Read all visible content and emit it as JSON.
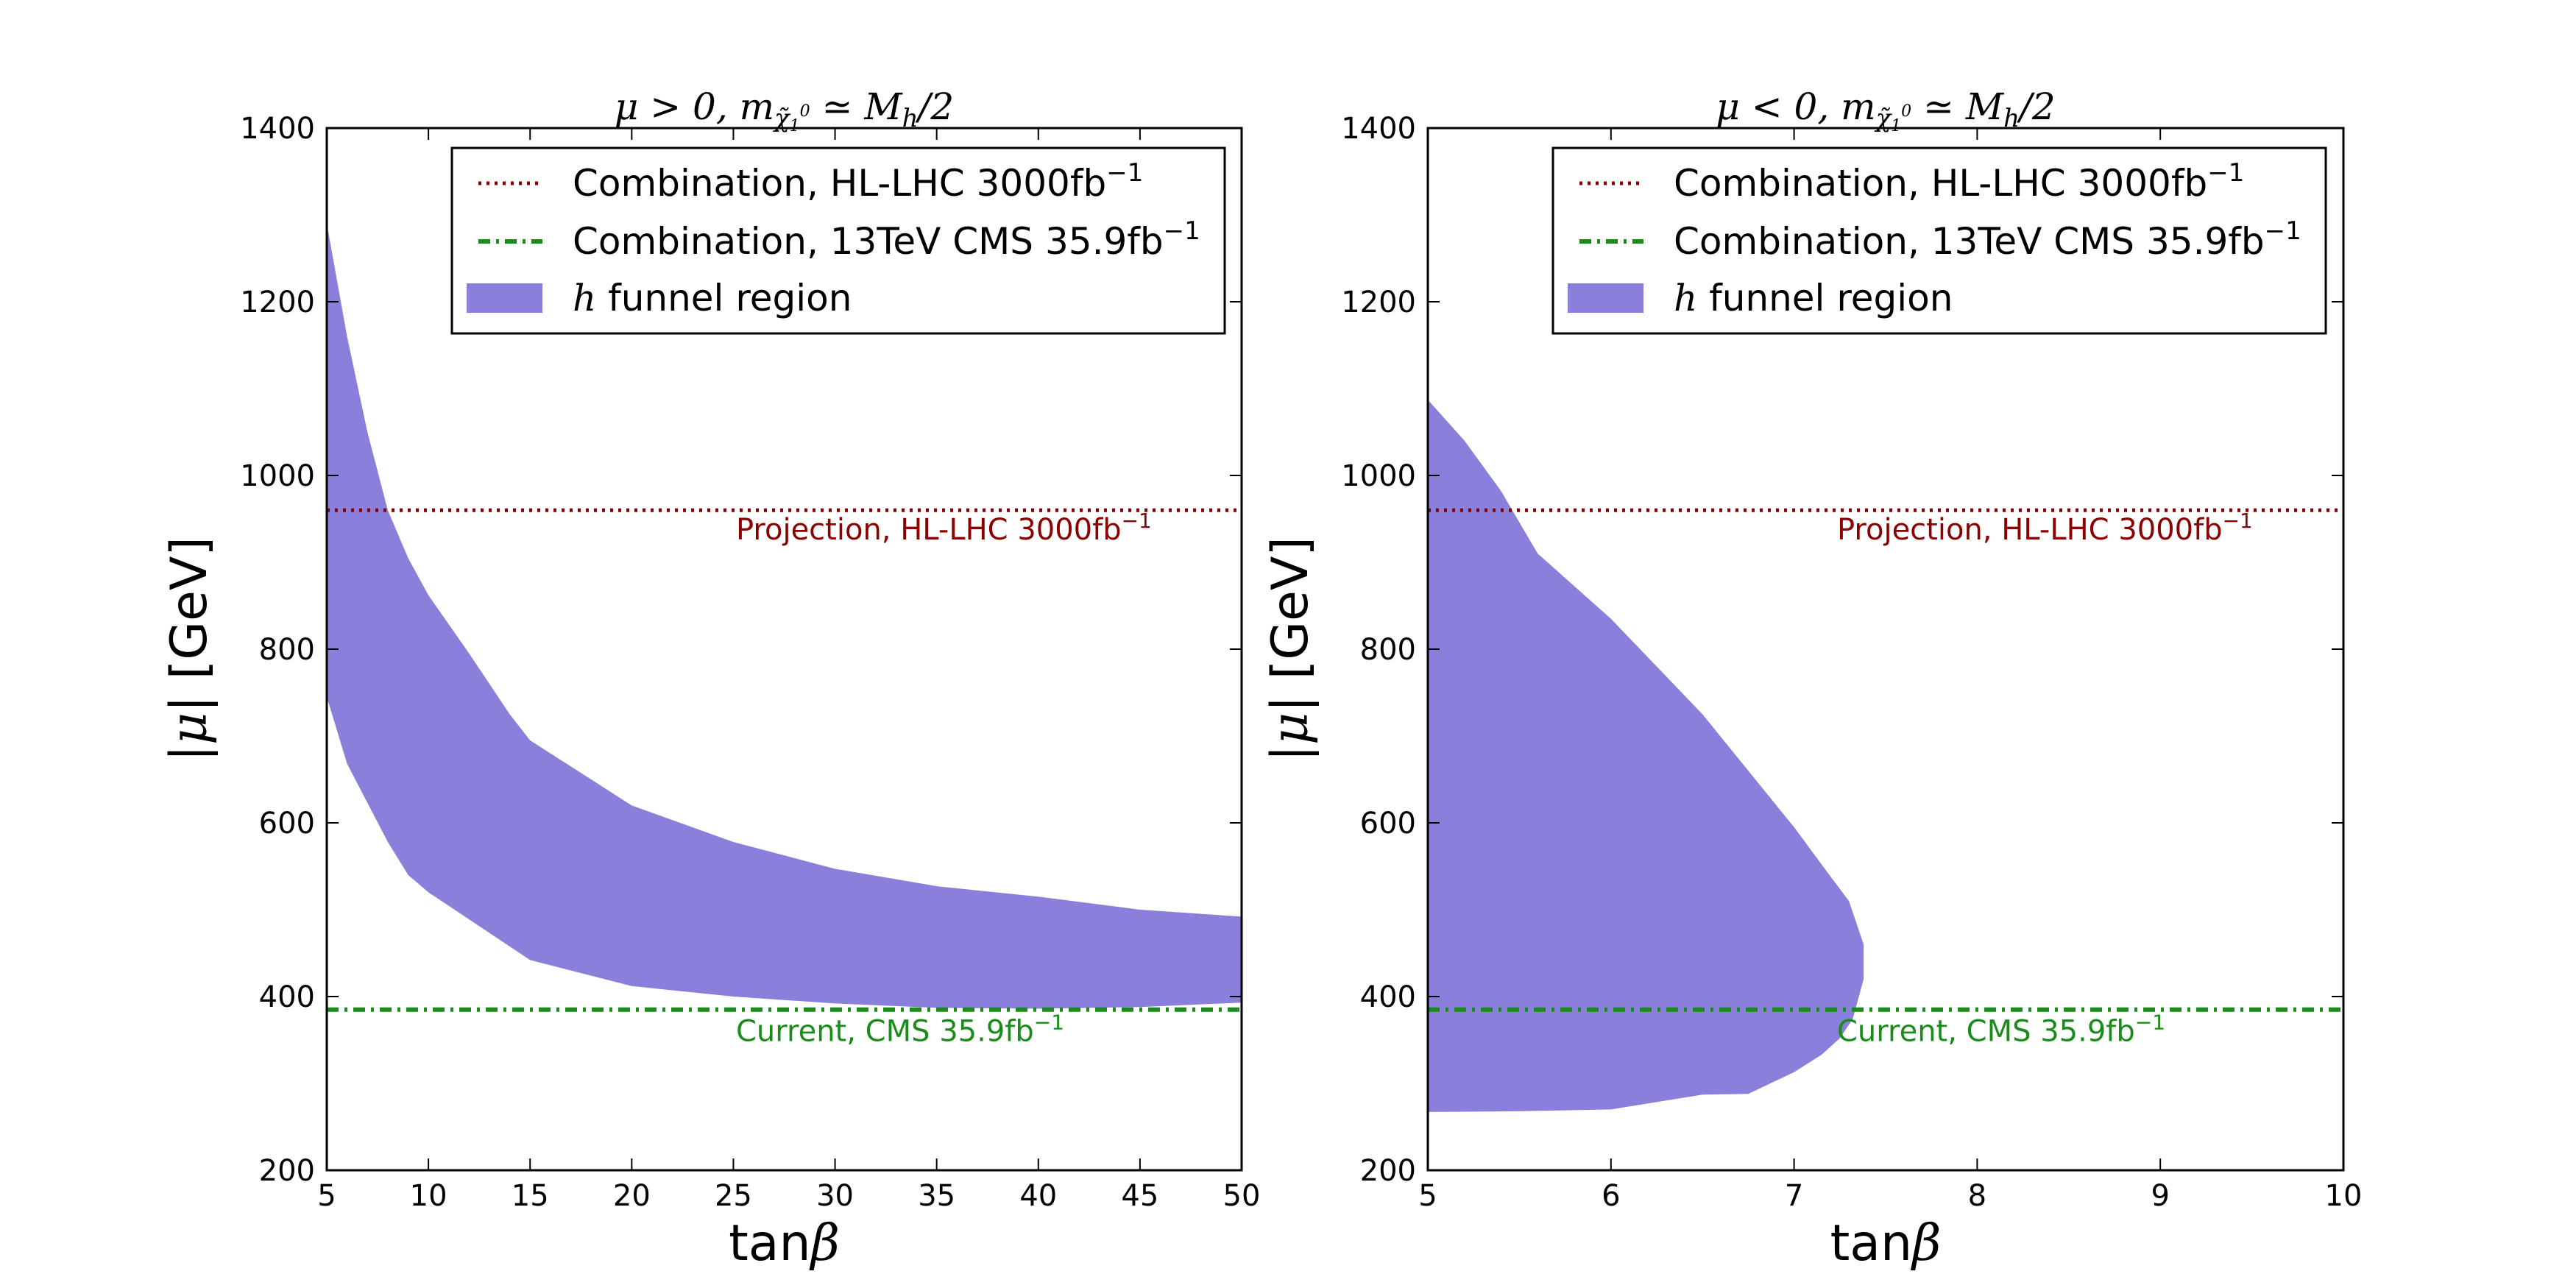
{
  "colors": {
    "funnel": "#8a7fda",
    "projection": "#8b0000",
    "current": "#1a8c1a",
    "axis": "#000000"
  },
  "legend": {
    "entries": [
      {
        "prefix": "Combination, HL-LHC 3000fb",
        "sup": "−1",
        "style": "dotted-red"
      },
      {
        "prefix": "Combination, 13TeV CMS 35.9fb",
        "sup": "−1",
        "style": "dashdot-green"
      },
      {
        "italic": "h",
        "suffix": " funnel region",
        "style": "fill"
      }
    ]
  },
  "chart_data": [
    {
      "type": "area",
      "title": "μ > 0, m_χ̃1⁰ ≃ M_h/2",
      "title_parts": {
        "sign": "μ > 0, ",
        "mass": "m",
        "chi": "χ̃",
        "chi_sub": "1",
        "chi_sup": "0",
        "approx": " ≃ ",
        "mh": "M",
        "mh_sub": "h",
        "tail": "/2"
      },
      "xlabel": "tanβ",
      "xlabel_parts": {
        "main": "tan",
        "greek": "β"
      },
      "ylabel": "|μ| [GeV]",
      "ylabel_parts": {
        "greek": "|μ|",
        "main": " [GeV]"
      },
      "xlim": [
        5,
        50
      ],
      "ylim": [
        200,
        1400
      ],
      "xticks": [
        5,
        10,
        15,
        20,
        25,
        30,
        35,
        40,
        45,
        50
      ],
      "yticks": [
        200,
        400,
        600,
        800,
        1000,
        1200,
        1400
      ],
      "funnel_upper": [
        [
          5,
          1290
        ],
        [
          6,
          1160
        ],
        [
          7,
          1050
        ],
        [
          8,
          960
        ],
        [
          9,
          905
        ],
        [
          10,
          862
        ],
        [
          12,
          795
        ],
        [
          14,
          725
        ],
        [
          15,
          695
        ],
        [
          20,
          620
        ],
        [
          25,
          578
        ],
        [
          30,
          547
        ],
        [
          35,
          527
        ],
        [
          40,
          515
        ],
        [
          45,
          500
        ],
        [
          50,
          492
        ]
      ],
      "funnel_lower": [
        [
          5,
          745
        ],
        [
          6,
          668
        ],
        [
          8,
          578
        ],
        [
          9,
          540
        ],
        [
          10,
          520
        ],
        [
          15,
          442
        ],
        [
          20,
          412
        ],
        [
          25,
          400
        ],
        [
          30,
          392
        ],
        [
          35,
          387
        ],
        [
          40,
          386
        ],
        [
          45,
          388
        ],
        [
          50,
          393
        ]
      ],
      "projection_level": 960,
      "current_level": 385,
      "projection_label": {
        "prefix": "Projection, HL-LHC 3000fb",
        "sup": "−1"
      },
      "current_label": {
        "prefix": "Current, CMS 35.9fb",
        "sup": "−1"
      }
    },
    {
      "type": "area",
      "title": "μ < 0, m_χ̃1⁰ ≃ M_h/2",
      "title_parts": {
        "sign": "μ < 0, ",
        "mass": "m",
        "chi": "χ̃",
        "chi_sub": "1",
        "chi_sup": "0",
        "approx": " ≃ ",
        "mh": "M",
        "mh_sub": "h",
        "tail": "/2"
      },
      "xlabel": "tanβ",
      "xlabel_parts": {
        "main": "tan",
        "greek": "β"
      },
      "ylabel": "|μ| [GeV]",
      "ylabel_parts": {
        "greek": "|μ|",
        "main": " [GeV]"
      },
      "xlim": [
        5,
        10
      ],
      "ylim": [
        200,
        1400
      ],
      "xticks": [
        5,
        6,
        7,
        8,
        9,
        10
      ],
      "yticks": [
        200,
        400,
        600,
        800,
        1000,
        1200,
        1400
      ],
      "funnel_upper": [
        [
          5,
          1087
        ],
        [
          5.2,
          1040
        ],
        [
          5.4,
          982
        ],
        [
          5.6,
          910
        ],
        [
          6,
          835
        ],
        [
          6.5,
          725
        ],
        [
          7,
          595
        ],
        [
          7.2,
          538
        ],
        [
          7.3,
          510
        ],
        [
          7.38,
          460
        ],
        [
          7.38,
          420
        ]
      ],
      "funnel_lower": [
        [
          5,
          267
        ],
        [
          5.5,
          268
        ],
        [
          6,
          270
        ],
        [
          6.5,
          287
        ],
        [
          6.75,
          288
        ],
        [
          7,
          313
        ],
        [
          7.15,
          333
        ],
        [
          7.25,
          352
        ],
        [
          7.32,
          374
        ],
        [
          7.38,
          420
        ]
      ],
      "projection_level": 960,
      "current_level": 385,
      "projection_label": {
        "prefix": "Projection, HL-LHC 3000fb",
        "sup": "−1"
      },
      "current_label": {
        "prefix": "Current, CMS 35.9fb",
        "sup": "−1"
      }
    }
  ]
}
